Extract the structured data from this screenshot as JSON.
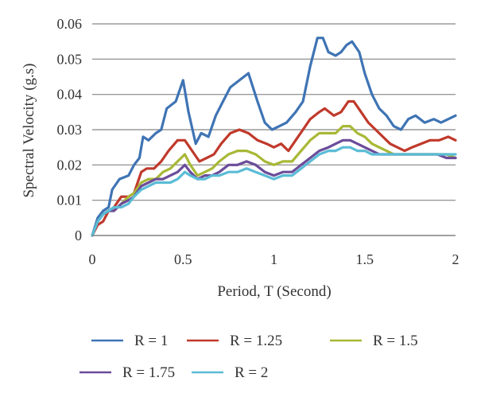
{
  "chart_data": {
    "type": "line",
    "title": "",
    "xlabel": "Period, T (Second)",
    "ylabel": "Spectral Velocity (g.s)",
    "xlim": [
      0,
      2
    ],
    "ylim": [
      0,
      0.06
    ],
    "x_ticks": [
      "0",
      "0.5",
      "1",
      "1.5",
      "2"
    ],
    "y_ticks": [
      "0",
      "0.01",
      "0.02",
      "0.03",
      "0.04",
      "0.05",
      "0.06"
    ],
    "grid": "horizontal",
    "legend_position": "bottom",
    "series": [
      {
        "name": "R = 1",
        "color": "#3f74b4",
        "points": [
          [
            0,
            0
          ],
          [
            0.03,
            0.005
          ],
          [
            0.06,
            0.007
          ],
          [
            0.09,
            0.008
          ],
          [
            0.11,
            0.013
          ],
          [
            0.15,
            0.016
          ],
          [
            0.2,
            0.017
          ],
          [
            0.23,
            0.02
          ],
          [
            0.26,
            0.022
          ],
          [
            0.28,
            0.028
          ],
          [
            0.31,
            0.027
          ],
          [
            0.35,
            0.029
          ],
          [
            0.38,
            0.03
          ],
          [
            0.41,
            0.036
          ],
          [
            0.46,
            0.038
          ],
          [
            0.5,
            0.044
          ],
          [
            0.53,
            0.035
          ],
          [
            0.57,
            0.026
          ],
          [
            0.6,
            0.029
          ],
          [
            0.64,
            0.028
          ],
          [
            0.68,
            0.034
          ],
          [
            0.72,
            0.038
          ],
          [
            0.76,
            0.042
          ],
          [
            0.81,
            0.044
          ],
          [
            0.86,
            0.046
          ],
          [
            0.91,
            0.038
          ],
          [
            0.95,
            0.032
          ],
          [
            0.99,
            0.03
          ],
          [
            1.03,
            0.031
          ],
          [
            1.07,
            0.032
          ],
          [
            1.12,
            0.035
          ],
          [
            1.16,
            0.038
          ],
          [
            1.2,
            0.048
          ],
          [
            1.24,
            0.056
          ],
          [
            1.27,
            0.056
          ],
          [
            1.3,
            0.052
          ],
          [
            1.34,
            0.051
          ],
          [
            1.37,
            0.052
          ],
          [
            1.4,
            0.054
          ],
          [
            1.43,
            0.055
          ],
          [
            1.47,
            0.052
          ],
          [
            1.5,
            0.046
          ],
          [
            1.54,
            0.04
          ],
          [
            1.58,
            0.036
          ],
          [
            1.62,
            0.034
          ],
          [
            1.66,
            0.031
          ],
          [
            1.7,
            0.03
          ],
          [
            1.74,
            0.033
          ],
          [
            1.78,
            0.034
          ],
          [
            1.83,
            0.032
          ],
          [
            1.88,
            0.033
          ],
          [
            1.92,
            0.032
          ],
          [
            1.96,
            0.033
          ],
          [
            2.0,
            0.034
          ]
        ]
      },
      {
        "name": "R = 1.25",
        "color": "#c0392b",
        "points": [
          [
            0,
            0
          ],
          [
            0.03,
            0.003
          ],
          [
            0.06,
            0.004
          ],
          [
            0.09,
            0.007
          ],
          [
            0.12,
            0.008
          ],
          [
            0.16,
            0.011
          ],
          [
            0.2,
            0.011
          ],
          [
            0.23,
            0.012
          ],
          [
            0.27,
            0.018
          ],
          [
            0.3,
            0.019
          ],
          [
            0.34,
            0.019
          ],
          [
            0.38,
            0.021
          ],
          [
            0.42,
            0.024
          ],
          [
            0.47,
            0.027
          ],
          [
            0.51,
            0.027
          ],
          [
            0.55,
            0.024
          ],
          [
            0.59,
            0.021
          ],
          [
            0.63,
            0.022
          ],
          [
            0.67,
            0.023
          ],
          [
            0.71,
            0.026
          ],
          [
            0.76,
            0.029
          ],
          [
            0.81,
            0.03
          ],
          [
            0.86,
            0.029
          ],
          [
            0.91,
            0.027
          ],
          [
            0.96,
            0.026
          ],
          [
            1.0,
            0.025
          ],
          [
            1.04,
            0.026
          ],
          [
            1.08,
            0.024
          ],
          [
            1.12,
            0.027
          ],
          [
            1.16,
            0.03
          ],
          [
            1.2,
            0.033
          ],
          [
            1.25,
            0.035
          ],
          [
            1.28,
            0.036
          ],
          [
            1.33,
            0.034
          ],
          [
            1.37,
            0.035
          ],
          [
            1.41,
            0.038
          ],
          [
            1.44,
            0.038
          ],
          [
            1.48,
            0.035
          ],
          [
            1.52,
            0.032
          ],
          [
            1.56,
            0.03
          ],
          [
            1.6,
            0.028
          ],
          [
            1.64,
            0.026
          ],
          [
            1.68,
            0.025
          ],
          [
            1.72,
            0.024
          ],
          [
            1.76,
            0.025
          ],
          [
            1.81,
            0.026
          ],
          [
            1.86,
            0.027
          ],
          [
            1.91,
            0.027
          ],
          [
            1.96,
            0.028
          ],
          [
            2.0,
            0.027
          ]
        ]
      },
      {
        "name": "R = 1.5",
        "color": "#a8b836",
        "points": [
          [
            0,
            0
          ],
          [
            0.03,
            0.004
          ],
          [
            0.06,
            0.006
          ],
          [
            0.09,
            0.007
          ],
          [
            0.12,
            0.007
          ],
          [
            0.16,
            0.009
          ],
          [
            0.2,
            0.011
          ],
          [
            0.23,
            0.012
          ],
          [
            0.27,
            0.015
          ],
          [
            0.31,
            0.016
          ],
          [
            0.35,
            0.016
          ],
          [
            0.39,
            0.018
          ],
          [
            0.43,
            0.019
          ],
          [
            0.47,
            0.021
          ],
          [
            0.51,
            0.023
          ],
          [
            0.54,
            0.02
          ],
          [
            0.58,
            0.017
          ],
          [
            0.62,
            0.018
          ],
          [
            0.66,
            0.019
          ],
          [
            0.7,
            0.021
          ],
          [
            0.75,
            0.023
          ],
          [
            0.8,
            0.024
          ],
          [
            0.85,
            0.024
          ],
          [
            0.9,
            0.023
          ],
          [
            0.95,
            0.021
          ],
          [
            1.0,
            0.02
          ],
          [
            1.05,
            0.021
          ],
          [
            1.1,
            0.021
          ],
          [
            1.15,
            0.024
          ],
          [
            1.2,
            0.027
          ],
          [
            1.25,
            0.029
          ],
          [
            1.3,
            0.029
          ],
          [
            1.34,
            0.029
          ],
          [
            1.38,
            0.031
          ],
          [
            1.42,
            0.031
          ],
          [
            1.46,
            0.029
          ],
          [
            1.5,
            0.028
          ],
          [
            1.54,
            0.026
          ],
          [
            1.58,
            0.025
          ],
          [
            1.62,
            0.024
          ],
          [
            1.66,
            0.023
          ],
          [
            1.7,
            0.023
          ],
          [
            1.75,
            0.023
          ],
          [
            1.8,
            0.023
          ],
          [
            1.85,
            0.023
          ],
          [
            1.9,
            0.023
          ],
          [
            1.95,
            0.023
          ],
          [
            2.0,
            0.022
          ]
        ]
      },
      {
        "name": "R = 1.75",
        "color": "#6b4c9a",
        "points": [
          [
            0,
            0
          ],
          [
            0.03,
            0.004
          ],
          [
            0.06,
            0.006
          ],
          [
            0.09,
            0.007
          ],
          [
            0.12,
            0.007
          ],
          [
            0.16,
            0.009
          ],
          [
            0.2,
            0.01
          ],
          [
            0.23,
            0.011
          ],
          [
            0.27,
            0.014
          ],
          [
            0.31,
            0.015
          ],
          [
            0.35,
            0.016
          ],
          [
            0.39,
            0.016
          ],
          [
            0.43,
            0.017
          ],
          [
            0.47,
            0.018
          ],
          [
            0.51,
            0.02
          ],
          [
            0.54,
            0.018
          ],
          [
            0.58,
            0.016
          ],
          [
            0.62,
            0.017
          ],
          [
            0.66,
            0.017
          ],
          [
            0.7,
            0.018
          ],
          [
            0.75,
            0.02
          ],
          [
            0.8,
            0.02
          ],
          [
            0.85,
            0.021
          ],
          [
            0.9,
            0.02
          ],
          [
            0.95,
            0.018
          ],
          [
            1.0,
            0.017
          ],
          [
            1.05,
            0.018
          ],
          [
            1.1,
            0.018
          ],
          [
            1.15,
            0.02
          ],
          [
            1.2,
            0.022
          ],
          [
            1.25,
            0.024
          ],
          [
            1.3,
            0.025
          ],
          [
            1.34,
            0.026
          ],
          [
            1.38,
            0.027
          ],
          [
            1.42,
            0.027
          ],
          [
            1.46,
            0.026
          ],
          [
            1.5,
            0.025
          ],
          [
            1.54,
            0.024
          ],
          [
            1.58,
            0.023
          ],
          [
            1.62,
            0.023
          ],
          [
            1.66,
            0.023
          ],
          [
            1.7,
            0.023
          ],
          [
            1.75,
            0.023
          ],
          [
            1.8,
            0.023
          ],
          [
            1.85,
            0.023
          ],
          [
            1.9,
            0.023
          ],
          [
            1.95,
            0.022
          ],
          [
            2.0,
            0.022
          ]
        ]
      },
      {
        "name": "R = 2",
        "color": "#5bbcd6",
        "points": [
          [
            0,
            0
          ],
          [
            0.03,
            0.004
          ],
          [
            0.06,
            0.006
          ],
          [
            0.09,
            0.007
          ],
          [
            0.12,
            0.008
          ],
          [
            0.16,
            0.008
          ],
          [
            0.2,
            0.009
          ],
          [
            0.23,
            0.011
          ],
          [
            0.27,
            0.013
          ],
          [
            0.31,
            0.014
          ],
          [
            0.35,
            0.015
          ],
          [
            0.39,
            0.015
          ],
          [
            0.43,
            0.015
          ],
          [
            0.47,
            0.016
          ],
          [
            0.51,
            0.018
          ],
          [
            0.54,
            0.017
          ],
          [
            0.58,
            0.016
          ],
          [
            0.62,
            0.016
          ],
          [
            0.66,
            0.017
          ],
          [
            0.7,
            0.017
          ],
          [
            0.75,
            0.018
          ],
          [
            0.8,
            0.018
          ],
          [
            0.85,
            0.019
          ],
          [
            0.9,
            0.018
          ],
          [
            0.95,
            0.017
          ],
          [
            1.0,
            0.016
          ],
          [
            1.05,
            0.017
          ],
          [
            1.1,
            0.017
          ],
          [
            1.15,
            0.019
          ],
          [
            1.2,
            0.021
          ],
          [
            1.25,
            0.023
          ],
          [
            1.3,
            0.024
          ],
          [
            1.34,
            0.024
          ],
          [
            1.38,
            0.025
          ],
          [
            1.42,
            0.025
          ],
          [
            1.46,
            0.024
          ],
          [
            1.5,
            0.024
          ],
          [
            1.54,
            0.023
          ],
          [
            1.58,
            0.023
          ],
          [
            1.62,
            0.023
          ],
          [
            1.66,
            0.023
          ],
          [
            1.7,
            0.023
          ],
          [
            1.75,
            0.023
          ],
          [
            1.8,
            0.023
          ],
          [
            1.85,
            0.023
          ],
          [
            1.9,
            0.023
          ],
          [
            1.95,
            0.023
          ],
          [
            2.0,
            0.023
          ]
        ]
      }
    ]
  }
}
